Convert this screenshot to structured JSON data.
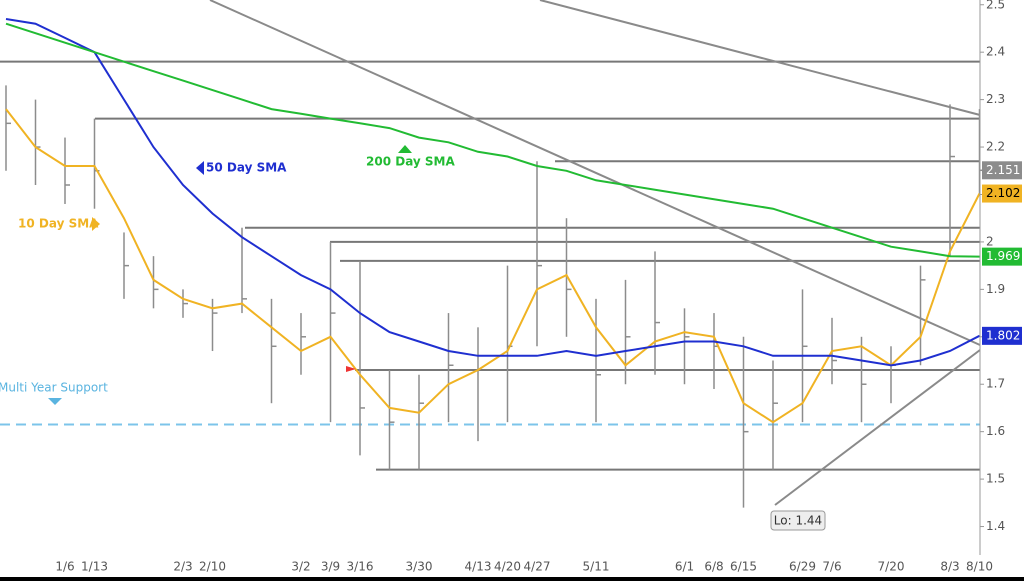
{
  "chart_data": {
    "type": "ohlc",
    "categories": [
      null,
      null,
      "1/6",
      "1/13",
      null,
      null,
      "2/3",
      "2/10",
      null,
      null,
      "3/2",
      "3/9",
      "3/16",
      null,
      "3/30",
      null,
      "4/13",
      "4/20",
      "4/27",
      null,
      "5/11",
      null,
      null,
      "6/1",
      "6/8",
      "6/15",
      null,
      "6/29",
      "7/6",
      null,
      "7/20",
      null,
      "8/3",
      "8/10"
    ],
    "high": [
      2.33,
      2.3,
      2.22,
      2.26,
      2.02,
      1.97,
      1.9,
      1.88,
      2.03,
      1.88,
      1.85,
      2.0,
      1.96,
      1.73,
      1.72,
      1.85,
      1.82,
      1.95,
      2.17,
      2.05,
      1.88,
      1.92,
      1.98,
      1.86,
      1.85,
      1.8,
      1.75,
      1.9,
      1.84,
      1.8,
      1.78,
      1.95,
      2.29,
      2.28
    ],
    "low": [
      2.15,
      2.12,
      2.08,
      2.07,
      1.88,
      1.86,
      1.84,
      1.77,
      1.85,
      1.66,
      1.72,
      1.62,
      1.55,
      1.52,
      1.52,
      1.62,
      1.58,
      1.62,
      1.78,
      1.8,
      1.62,
      1.7,
      1.72,
      1.7,
      1.69,
      1.44,
      1.52,
      1.62,
      1.7,
      1.62,
      1.66,
      1.74,
      1.97,
      2.1
    ],
    "close": [
      2.25,
      2.2,
      2.12,
      2.15,
      1.95,
      1.9,
      1.87,
      1.85,
      1.88,
      1.78,
      1.8,
      1.85,
      1.65,
      1.62,
      1.66,
      1.74,
      1.76,
      1.78,
      1.95,
      1.9,
      1.72,
      1.8,
      1.83,
      1.8,
      1.78,
      1.6,
      1.66,
      1.78,
      1.75,
      1.7,
      1.74,
      1.92,
      2.18,
      2.151
    ],
    "bar_color": "#8c8c8c",
    "series": [
      {
        "name": "10 Day SMA",
        "color": "#f0b323",
        "values": [
          2.28,
          2.2,
          2.16,
          2.16,
          2.05,
          1.92,
          1.88,
          1.86,
          1.87,
          1.82,
          1.77,
          1.8,
          1.72,
          1.65,
          1.64,
          1.7,
          1.73,
          1.77,
          1.9,
          1.93,
          1.82,
          1.74,
          1.79,
          1.81,
          1.8,
          1.66,
          1.62,
          1.66,
          1.77,
          1.78,
          1.74,
          1.8,
          1.98,
          2.102
        ]
      },
      {
        "name": "50 Day SMA",
        "color": "#1f2fd0",
        "values": [
          2.47,
          2.46,
          2.43,
          2.4,
          2.3,
          2.2,
          2.12,
          2.06,
          2.01,
          1.97,
          1.93,
          1.9,
          1.85,
          1.81,
          1.79,
          1.77,
          1.76,
          1.76,
          1.76,
          1.77,
          1.76,
          1.77,
          1.78,
          1.79,
          1.79,
          1.78,
          1.76,
          1.76,
          1.76,
          1.75,
          1.74,
          1.75,
          1.77,
          1.802
        ]
      },
      {
        "name": "200 Day SMA",
        "color": "#22bb33",
        "values": [
          2.46,
          2.44,
          2.42,
          2.4,
          2.38,
          2.36,
          2.34,
          2.32,
          2.3,
          2.28,
          2.27,
          2.26,
          2.25,
          2.24,
          2.22,
          2.21,
          2.19,
          2.18,
          2.16,
          2.15,
          2.13,
          2.12,
          2.11,
          2.1,
          2.09,
          2.08,
          2.07,
          2.05,
          2.03,
          2.01,
          1.99,
          1.98,
          1.97,
          1.969
        ]
      }
    ],
    "levels": [
      2.38,
      2.26,
      2.17,
      2.03,
      2.0,
      1.96,
      1.73,
      1.52
    ],
    "support": 1.615,
    "support_label": "Multi Year Support",
    "low_label": "Lo: 1.44",
    "ylim": [
      1.34,
      2.51
    ],
    "yticks": [
      1.4,
      1.5,
      1.6,
      1.7,
      1.8,
      1.9,
      2,
      2.1,
      2.2,
      2.3,
      2.4,
      2.5
    ]
  }
}
